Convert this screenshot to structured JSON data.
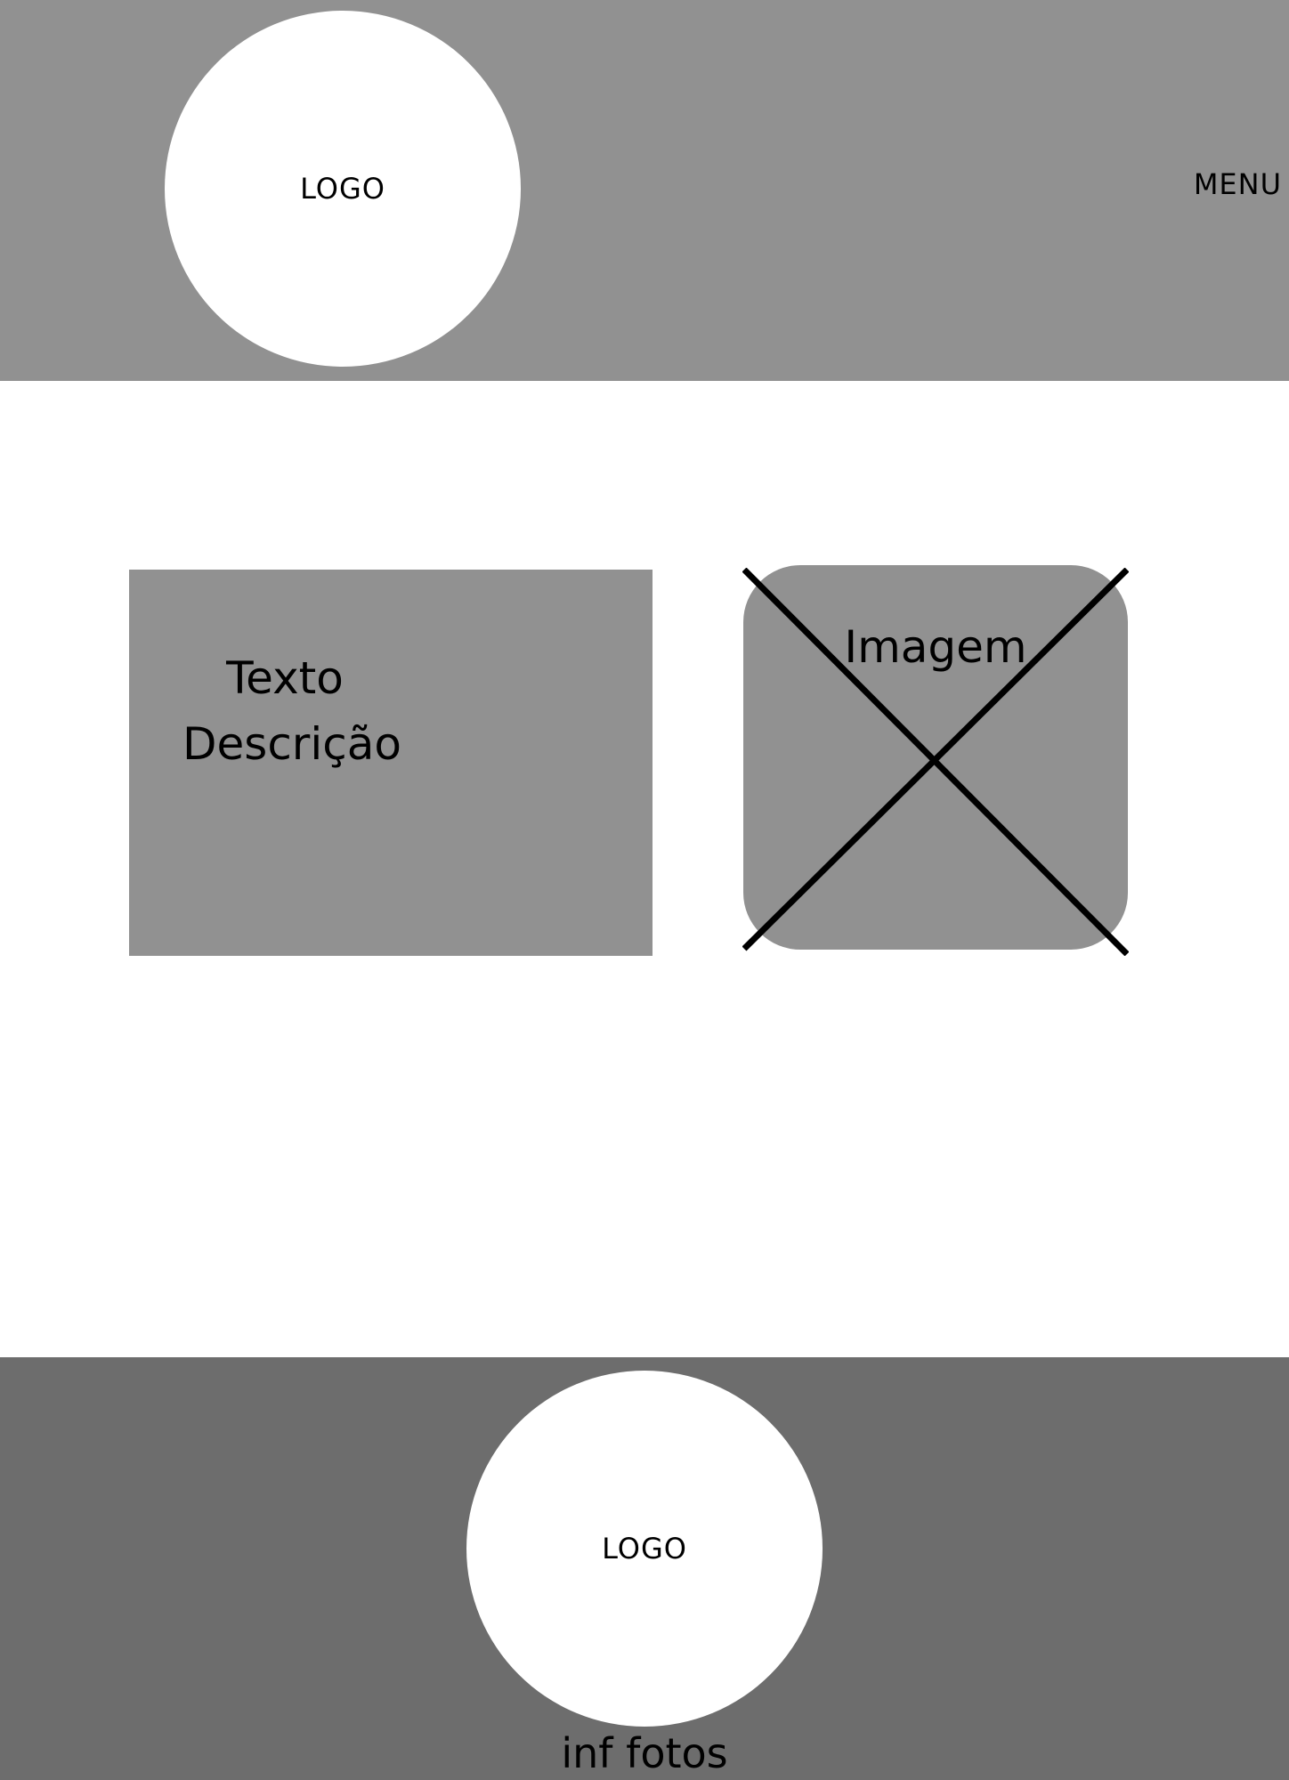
{
  "header": {
    "logo_label": "LOGO",
    "menu_label": "MENU"
  },
  "content": {
    "text_label": "Texto Descrição",
    "image_label": "Imagem"
  },
  "footer": {
    "logo_label": "LOGO",
    "caption": "inf fotos"
  },
  "colors": {
    "header_bg": "#919191",
    "footer_bg": "#6d6d6d",
    "placeholder_bg": "#919191",
    "logo_bg": "#ffffff"
  }
}
